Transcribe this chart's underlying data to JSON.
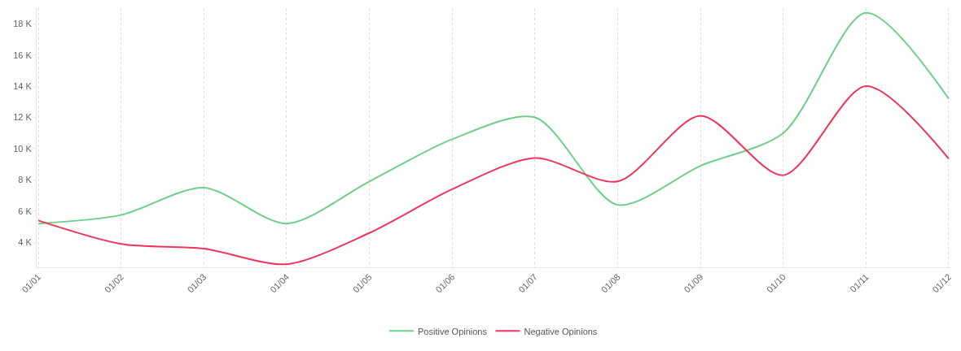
{
  "chart_data": {
    "type": "line",
    "categories": [
      "01/01",
      "01/02",
      "01/03",
      "01/04",
      "01/05",
      "01/06",
      "01/07",
      "01/08",
      "01/09",
      "01/10",
      "01/11",
      "01/12"
    ],
    "series": [
      {
        "name": "Positive Opinions",
        "color": "#6fcf8a",
        "values": [
          5200,
          5750,
          7500,
          5200,
          7900,
          10600,
          12000,
          6400,
          8900,
          11000,
          18700,
          13200
        ]
      },
      {
        "name": "Negative Opinions",
        "color": "#f0345a",
        "values": [
          5400,
          3900,
          3600,
          2600,
          4600,
          7400,
          9400,
          7900,
          12100,
          8300,
          14000,
          9350
        ]
      }
    ],
    "ylim": [
      2400,
      19000
    ],
    "yticks": [
      {
        "value": 4000,
        "label": "4 K"
      },
      {
        "value": 6000,
        "label": "6 K"
      },
      {
        "value": 8000,
        "label": "8 K"
      },
      {
        "value": 10000,
        "label": "10 K"
      },
      {
        "value": 12000,
        "label": "12 K"
      },
      {
        "value": 14000,
        "label": "14 K"
      },
      {
        "value": 16000,
        "label": "16 K"
      },
      {
        "value": 18000,
        "label": "18 K"
      }
    ],
    "grid": "x",
    "legend": "bottom",
    "marker": "none",
    "line_style": "solid"
  }
}
